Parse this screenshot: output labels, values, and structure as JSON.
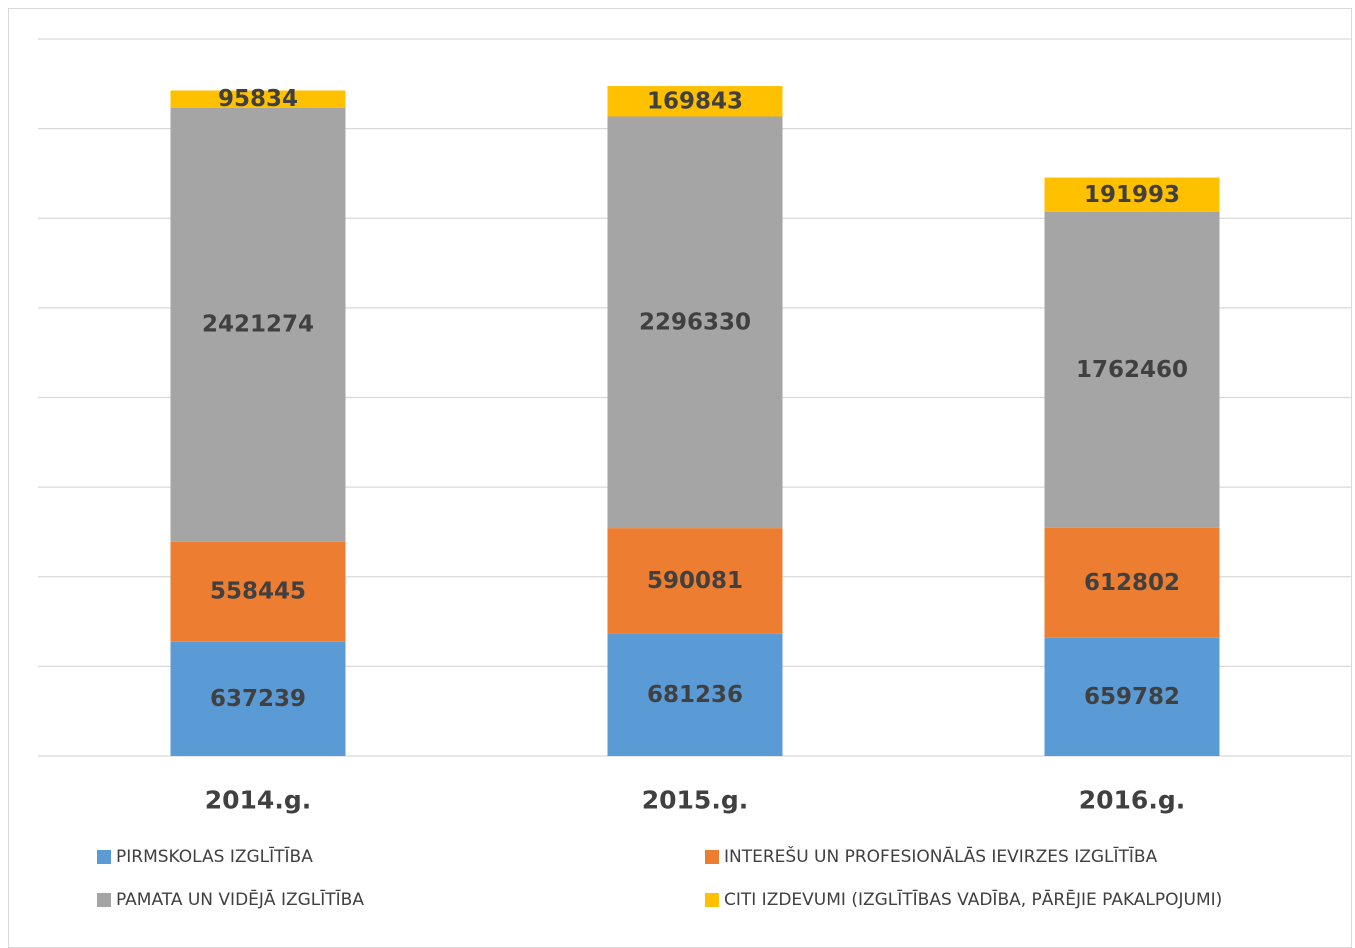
{
  "chart_data": {
    "type": "bar",
    "stacked": true,
    "categories": [
      "2014.g.",
      "2015.g.",
      "2016.g."
    ],
    "series": [
      {
        "name": "PIRMSKOLAS IZGLĪTĪBA",
        "color": "#5B9BD5",
        "values": [
          637239,
          681236,
          659782
        ]
      },
      {
        "name": "INTEREŠU UN PROFESIONĀLĀS IEVIRZES IZGLĪTĪBA",
        "color": "#ED7D31",
        "values": [
          558445,
          590081,
          612802
        ]
      },
      {
        "name": "PAMATA UN VIDĒJĀ IZGLĪTĪBA",
        "color": "#A5A5A5",
        "values": [
          2421274,
          2296330,
          1762460
        ]
      },
      {
        "name": "CITI IZDEVUMI (IZGLĪTĪBAS VADĪBA, PĀRĒJIE PAKALPOJUMI)",
        "color": "#FFC000",
        "values": [
          95834,
          169843,
          191993
        ]
      }
    ],
    "ylim": [
      0,
      4000000
    ],
    "grid": true,
    "legend_position": "bottom",
    "title": "",
    "xlabel": "",
    "ylabel": ""
  }
}
